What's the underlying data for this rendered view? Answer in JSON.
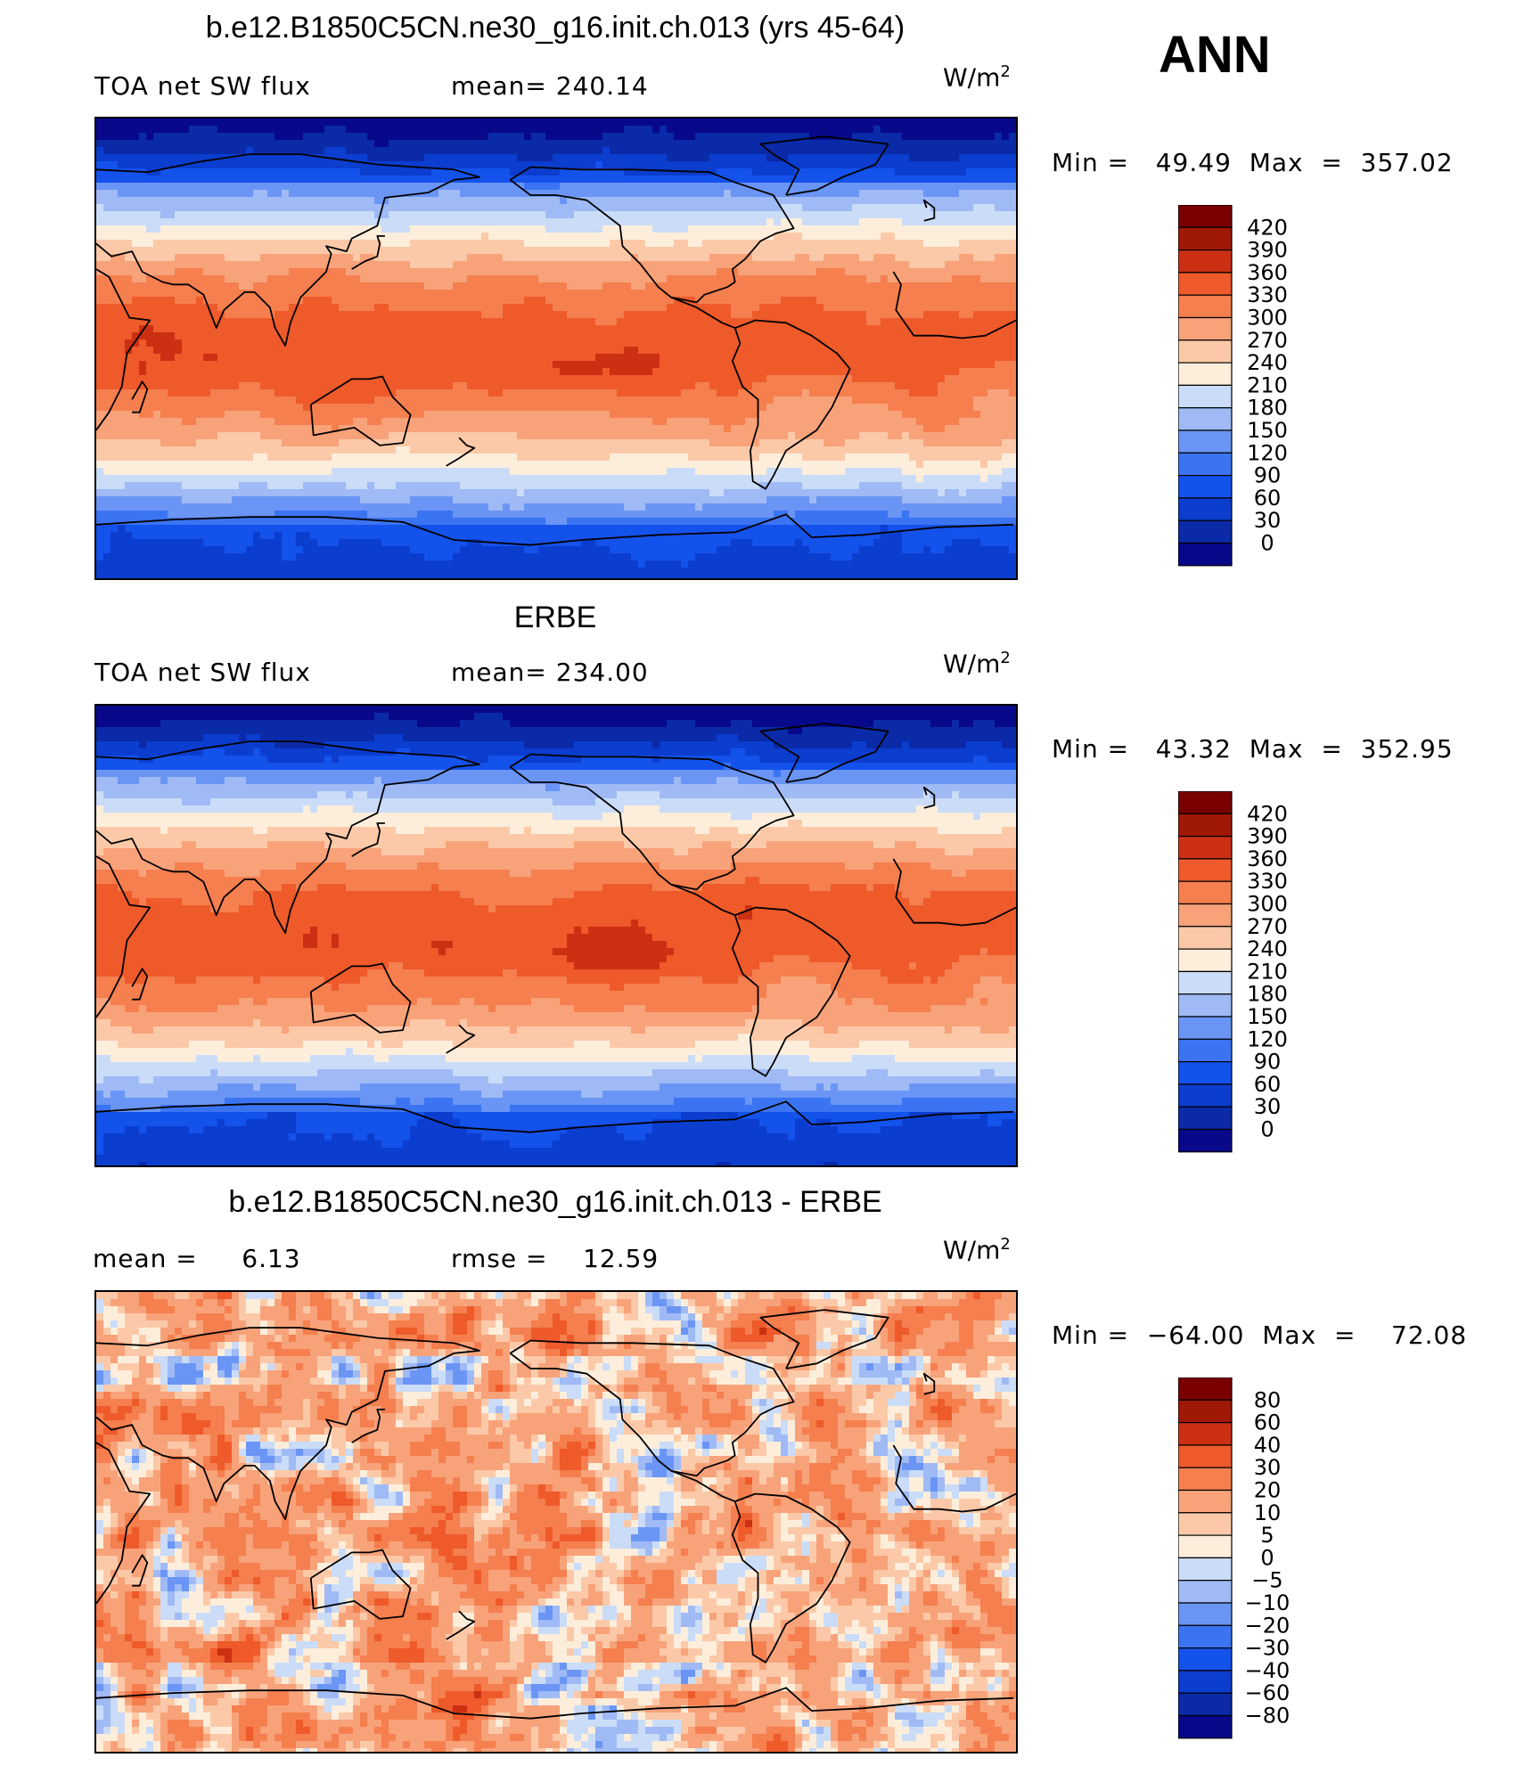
{
  "season": "ANN",
  "units_base": "W/m",
  "units_exp": "2",
  "panels": [
    {
      "title": "b.e12.B1850C5CN.ne30_g16.init.ch.013 (yrs 45-64)",
      "left_label": "TOA net SW flux",
      "center_label": "mean= 240.14",
      "minmax": "Min =   49.49  Max  =  357.02"
    },
    {
      "title": "ERBE",
      "left_label": "TOA net SW flux",
      "center_label": "mean= 234.00",
      "minmax": "Min =   43.32  Max  =  352.95"
    },
    {
      "title": "b.e12.B1850C5CN.ne30_g16.init.ch.013 - ERBE",
      "left_label": "mean =     6.13",
      "center_label": "rmse =    12.59",
      "minmax": "Min =  −64.00  Max  =    72.08"
    }
  ],
  "chart_data": [
    {
      "type": "heatmap",
      "title": "b.e12.B1850C5CN.ne30_g16.init.ch.013 (yrs 45-64)",
      "variable": "TOA net SW flux",
      "mean": 240.14,
      "min": 49.49,
      "max": 357.02,
      "colorbar_levels": [
        "420",
        "390",
        "360",
        "330",
        "300",
        "270",
        "240",
        "210",
        "180",
        "150",
        "120",
        "90",
        "60",
        "30",
        "0"
      ],
      "latitude_band_means": [
        45,
        110,
        175,
        255,
        300,
        315,
        320,
        310,
        290,
        250,
        175,
        95,
        45
      ]
    },
    {
      "type": "heatmap",
      "title": "ERBE",
      "variable": "TOA net SW flux",
      "mean": 234.0,
      "min": 43.32,
      "max": 352.95,
      "colorbar_levels": [
        "420",
        "390",
        "360",
        "330",
        "300",
        "270",
        "240",
        "210",
        "180",
        "150",
        "120",
        "90",
        "60",
        "30",
        "0"
      ],
      "latitude_band_means": [
        50,
        100,
        170,
        245,
        290,
        310,
        315,
        305,
        285,
        240,
        160,
        80,
        40
      ]
    },
    {
      "type": "heatmap",
      "title": "b.e12.B1850C5CN.ne30_g16.init.ch.013 - ERBE",
      "mean": 6.13,
      "rmse": 12.59,
      "min": -64.0,
      "max": 72.08,
      "colorbar_levels": [
        "80",
        "60",
        "40",
        "30",
        "20",
        "10",
        "5",
        "0",
        "−5",
        "−10",
        "−20",
        "−30",
        "−40",
        "−60",
        "−80"
      ],
      "latitude_band_means": [
        5,
        12,
        8,
        10,
        12,
        6,
        2,
        8,
        10,
        12,
        14,
        6,
        2
      ]
    }
  ],
  "colors": {
    "abs_palette": [
      "#08088a",
      "#0a2aa8",
      "#0b3dce",
      "#1452ec",
      "#3b74f2",
      "#6a95f5",
      "#9fbaf5",
      "#cadcf7",
      "#fdeedc",
      "#fcc9a8",
      "#f8a27a",
      "#f57f4e",
      "#ee5a2a",
      "#cc3012",
      "#a01806",
      "#7a0000"
    ],
    "diff_palette": [
      "#08088a",
      "#0a2aa8",
      "#0b3dce",
      "#1452ec",
      "#3b74f2",
      "#6a95f5",
      "#9fbaf5",
      "#cadcf7",
      "#fdeedc",
      "#fcc9a8",
      "#f8a27a",
      "#f57f4e",
      "#ee5a2a",
      "#cc3012",
      "#a01806",
      "#7a0000"
    ]
  }
}
